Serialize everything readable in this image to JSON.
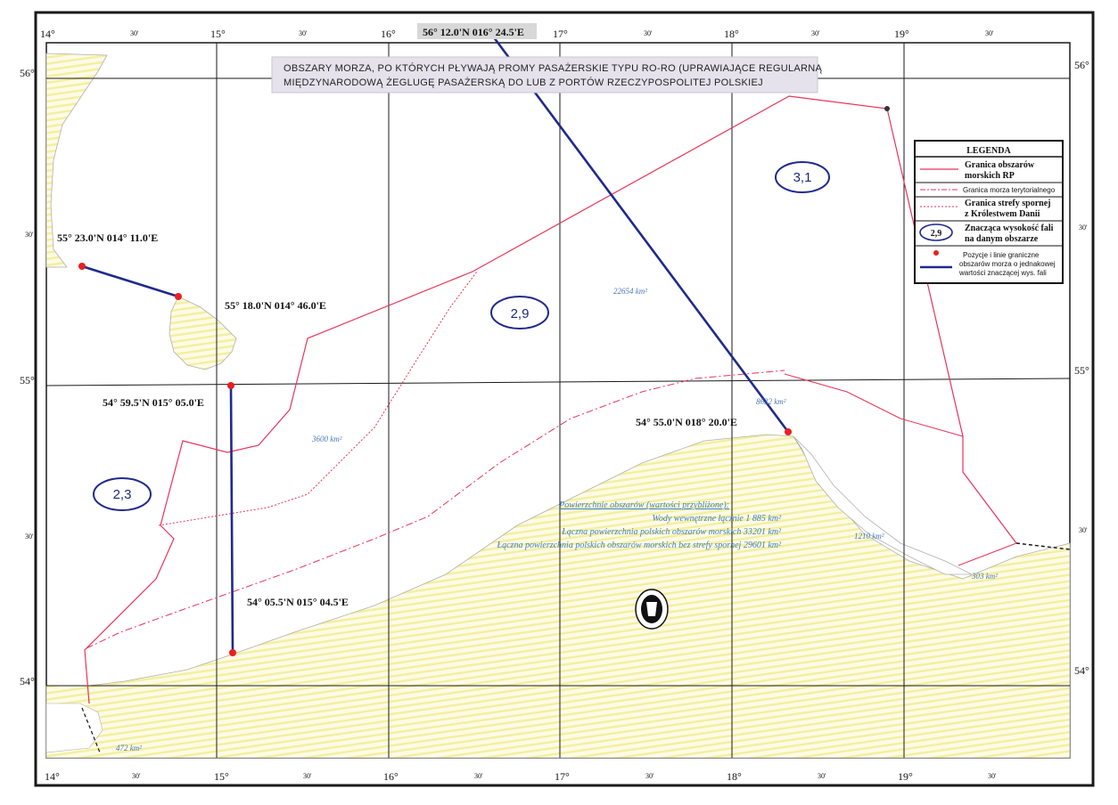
{
  "top_label": "56° 12.0'N 016° 24.5'E",
  "title_line1": "OBSZARY MORZA, PO KTÓRYCH PŁYWAJĄ PROMY PASAŻERSKIE TYPU RO-RO (UPRAWIAJĄCE REGULARNĄ",
  "title_line2": "MIĘDZYNARODOWĄ ŻEGLUGĘ PASAŻERSKĄ DO LUB Z PORTÓW RZECZYPOSPOLITEJ POLSKIEJ",
  "longitudes_top": [
    "14°",
    "30'",
    "15°",
    "30'",
    "16°",
    "30'",
    "17°",
    "30'",
    "18°",
    "30'",
    "19°",
    "30'"
  ],
  "longitudes_bottom": [
    "14°",
    "30'",
    "15°",
    "30'",
    "16°",
    "30'",
    "17°",
    "30'",
    "18°",
    "30'",
    "19°",
    "30'"
  ],
  "latitudes_left": [
    "56°",
    "30'",
    "55°",
    "30'",
    "54°"
  ],
  "latitudes_right": [
    "56°",
    "30'",
    "55°",
    "30'",
    "54°"
  ],
  "positions": {
    "p1": "55° 23.0'N 014° 11.0'E",
    "p2": "55° 18.0'N 014° 46.0'E",
    "p3": "54° 59.5'N  015° 05.0'E",
    "p4": "54° 05.5'N 015° 04.5'E",
    "p5": "54° 55.0'N 018° 20.0'E"
  },
  "zones": {
    "z1": "2,3",
    "z2": "2,9",
    "z3": "3,1"
  },
  "areas": {
    "a1": "22654 km²",
    "a2": "3600 km²",
    "a3": "8632 km²",
    "a4": "1210 km²",
    "a5": "303 km²",
    "a6": "472 km²"
  },
  "summary": {
    "line1": "Powierzchnie obszarów (wartości przybliżone):",
    "line2": "Wody wewnętrzne łącznie  1 885 km²",
    "line3": "Łączna powierzchnia polskich obszarów morskich 33201 km²",
    "line4": "Łączna powierzchnia polskich obszarów morskich bez strefy spornej 29601 km²"
  },
  "legend": {
    "title": "LEGENDA",
    "item1a": "Granica obszarów",
    "item1b": "morskich RP",
    "item2": "Granica morza terytorialnego",
    "item3a": "Granica strefy spornej",
    "item3b": "z Królestwem Danii",
    "item4_symbol": "2,9",
    "item4a": "Znacząca wysokość fali",
    "item4b": "na danym obszarze",
    "item5a": "Pozycje i linie graniczne",
    "item5b": "obszarów morza o jednakowej",
    "item5c": "wartości znaczącej wys. fali"
  },
  "colors": {
    "boundary": "#e8335a",
    "blue_line": "#1f2a8c",
    "position_dot": "#e82020",
    "land_stripe": "#f4f0a0",
    "zone_ellipse": "#1f2a8c"
  }
}
